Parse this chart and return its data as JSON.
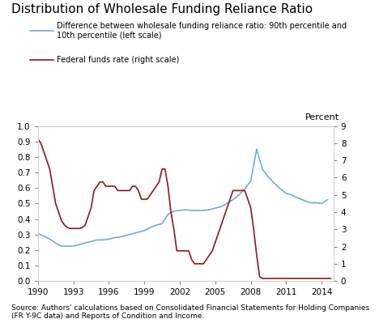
{
  "title": "Distribution of Wholesale Funding Reliance Ratio",
  "legend_blue": "Difference between wholesale funding reliance ratio: 90th percentile and\n10th percentile (left scale)",
  "legend_red": "Federal funds rate (right scale)",
  "right_axis_label": "Percent",
  "source_text": "Source: Authors' calculations based on Consolidated Financial Statements for Holding Companies\n(FR Y-9C data) and Reports of Condition and Income.",
  "blue_color": "#6baed6",
  "red_color": "#8b1a1a",
  "ylim_left": [
    0.0,
    1.0
  ],
  "ylim_right": [
    0,
    9
  ],
  "yticks_left": [
    0.0,
    0.1,
    0.2,
    0.3,
    0.4,
    0.5,
    0.6,
    0.7,
    0.8,
    0.9,
    1.0
  ],
  "yticks_right": [
    0,
    1,
    2,
    3,
    4,
    5,
    6,
    7,
    8,
    9
  ],
  "xlim": [
    1990,
    2015
  ],
  "xticks": [
    1990,
    1993,
    1996,
    1999,
    2002,
    2005,
    2008,
    2011,
    2014
  ],
  "blue_x": [
    1990.0,
    1990.5,
    1991.0,
    1991.5,
    1992.0,
    1992.5,
    1993.0,
    1993.5,
    1994.0,
    1994.5,
    1995.0,
    1995.5,
    1996.0,
    1996.5,
    1997.0,
    1997.5,
    1998.0,
    1998.5,
    1999.0,
    1999.5,
    2000.0,
    2000.5,
    2001.0,
    2001.5,
    2002.0,
    2002.5,
    2003.0,
    2003.5,
    2004.0,
    2004.5,
    2005.0,
    2005.5,
    2006.0,
    2006.5,
    2007.0,
    2007.5,
    2008.0,
    2008.5,
    2009.0,
    2009.5,
    2010.0,
    2010.5,
    2011.0,
    2011.5,
    2012.0,
    2012.5,
    2013.0,
    2013.5,
    2014.0,
    2014.5
  ],
  "blue_y": [
    0.305,
    0.29,
    0.27,
    0.245,
    0.225,
    0.225,
    0.225,
    0.235,
    0.245,
    0.255,
    0.265,
    0.265,
    0.27,
    0.28,
    0.285,
    0.295,
    0.305,
    0.315,
    0.325,
    0.345,
    0.36,
    0.37,
    0.43,
    0.45,
    0.455,
    0.46,
    0.455,
    0.455,
    0.455,
    0.46,
    0.47,
    0.48,
    0.5,
    0.525,
    0.555,
    0.595,
    0.645,
    0.85,
    0.72,
    0.67,
    0.63,
    0.595,
    0.565,
    0.555,
    0.535,
    0.52,
    0.505,
    0.505,
    0.5,
    0.525
  ],
  "red_x": [
    1990.0,
    1990.25,
    1990.5,
    1990.75,
    1991.0,
    1991.25,
    1991.5,
    1991.75,
    1992.0,
    1992.25,
    1992.5,
    1992.75,
    1993.0,
    1993.25,
    1993.5,
    1993.75,
    1994.0,
    1994.25,
    1994.5,
    1994.75,
    1995.0,
    1995.25,
    1995.5,
    1995.75,
    1996.0,
    1996.25,
    1996.5,
    1996.75,
    1997.0,
    1997.25,
    1997.5,
    1997.75,
    1998.0,
    1998.25,
    1998.5,
    1998.75,
    1999.0,
    1999.25,
    1999.5,
    1999.75,
    2000.0,
    2000.25,
    2000.5,
    2000.75,
    2001.0,
    2001.25,
    2001.5,
    2001.75,
    2002.0,
    2002.25,
    2002.5,
    2002.75,
    2003.0,
    2003.25,
    2003.5,
    2003.75,
    2004.0,
    2004.25,
    2004.5,
    2004.75,
    2005.0,
    2005.25,
    2005.5,
    2005.75,
    2006.0,
    2006.25,
    2006.5,
    2006.75,
    2007.0,
    2007.25,
    2007.5,
    2007.75,
    2008.0,
    2008.25,
    2008.5,
    2008.75,
    2009.0,
    2009.25,
    2009.5,
    2009.75,
    2010.0,
    2010.25,
    2010.5,
    2010.75,
    2011.0,
    2011.25,
    2011.5,
    2011.75,
    2012.0,
    2012.25,
    2012.5,
    2012.75,
    2013.0,
    2013.25,
    2013.5,
    2013.75,
    2014.0,
    2014.25,
    2014.5,
    2014.75
  ],
  "red_y": [
    8.25,
    8.0,
    7.5,
    7.0,
    6.5,
    5.5,
    4.5,
    4.0,
    3.5,
    3.25,
    3.1,
    3.05,
    3.05,
    3.05,
    3.05,
    3.1,
    3.25,
    3.75,
    4.25,
    5.25,
    5.5,
    5.75,
    5.75,
    5.5,
    5.5,
    5.5,
    5.5,
    5.25,
    5.25,
    5.25,
    5.25,
    5.25,
    5.5,
    5.5,
    5.25,
    4.75,
    4.75,
    4.75,
    5.0,
    5.25,
    5.5,
    5.75,
    6.5,
    6.5,
    5.5,
    4.0,
    3.0,
    1.75,
    1.75,
    1.75,
    1.75,
    1.75,
    1.25,
    1.0,
    1.0,
    1.0,
    1.0,
    1.25,
    1.5,
    1.75,
    2.25,
    2.75,
    3.25,
    3.75,
    4.25,
    4.75,
    5.25,
    5.25,
    5.25,
    5.25,
    5.25,
    4.75,
    4.25,
    3.0,
    1.5,
    0.25,
    0.15,
    0.15,
    0.15,
    0.15,
    0.15,
    0.15,
    0.15,
    0.15,
    0.15,
    0.15,
    0.15,
    0.15,
    0.15,
    0.15,
    0.15,
    0.15,
    0.15,
    0.15,
    0.15,
    0.15,
    0.15,
    0.15,
    0.15,
    0.15
  ]
}
